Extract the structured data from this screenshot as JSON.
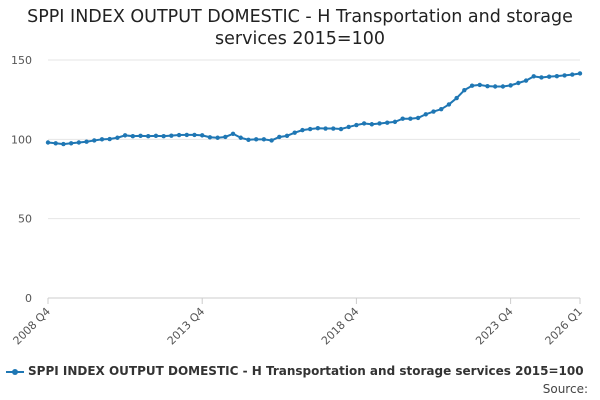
{
  "chart_data": {
    "type": "line",
    "title": "SPPI INDEX OUTPUT DOMESTIC - H Transportation and storage services 2015=100",
    "xlabel": "",
    "ylabel": "",
    "ylim": [
      0,
      150
    ],
    "yticks": [
      "0",
      "50",
      "100",
      "150"
    ],
    "xticks": [
      "2008 Q4",
      "2013 Q4",
      "2018 Q4",
      "2023 Q4",
      "2026 Q1"
    ],
    "grid": true,
    "legend_position": "bottom",
    "source_label": "Source:",
    "color": "#1f77b4",
    "series": [
      {
        "name": "SPPI INDEX OUTPUT DOMESTIC - H Transportation and storage services 2015=100",
        "x": [
          "2008 Q4",
          "2009 Q1",
          "2009 Q2",
          "2009 Q3",
          "2009 Q4",
          "2010 Q1",
          "2010 Q2",
          "2010 Q3",
          "2010 Q4",
          "2011 Q1",
          "2011 Q2",
          "2011 Q3",
          "2011 Q4",
          "2012 Q1",
          "2012 Q2",
          "2012 Q3",
          "2012 Q4",
          "2013 Q1",
          "2013 Q2",
          "2013 Q3",
          "2013 Q4",
          "2014 Q1",
          "2014 Q2",
          "2014 Q3",
          "2014 Q4",
          "2015 Q1",
          "2015 Q2",
          "2015 Q3",
          "2015 Q4",
          "2016 Q1",
          "2016 Q2",
          "2016 Q3",
          "2016 Q4",
          "2017 Q1",
          "2017 Q2",
          "2017 Q3",
          "2017 Q4",
          "2018 Q1",
          "2018 Q2",
          "2018 Q3",
          "2018 Q4",
          "2019 Q1",
          "2019 Q2",
          "2019 Q3",
          "2019 Q4",
          "2020 Q1",
          "2020 Q2",
          "2020 Q3",
          "2020 Q4",
          "2021 Q1",
          "2021 Q2",
          "2021 Q3",
          "2021 Q4",
          "2022 Q1",
          "2022 Q2",
          "2022 Q3",
          "2022 Q4",
          "2023 Q1",
          "2023 Q2",
          "2023 Q3",
          "2023 Q4",
          "2024 Q1",
          "2024 Q2",
          "2024 Q3",
          "2024 Q4",
          "2025 Q1",
          "2025 Q2",
          "2025 Q3",
          "2025 Q4",
          "2026 Q1"
        ],
        "values": [
          98.0,
          97.5,
          97.0,
          97.5,
          98.0,
          98.5,
          99.3,
          100.0,
          100.2,
          101.0,
          102.5,
          102.0,
          102.2,
          102.0,
          102.2,
          102.0,
          102.3,
          102.7,
          102.8,
          102.8,
          102.5,
          101.3,
          101.0,
          101.5,
          103.5,
          101.0,
          99.7,
          100.0,
          100.0,
          99.3,
          101.5,
          102.2,
          104.2,
          105.8,
          106.5,
          107.0,
          106.8,
          106.8,
          106.5,
          107.8,
          109.0,
          110.0,
          109.5,
          110.0,
          110.5,
          111.0,
          113.0,
          113.0,
          113.5,
          115.8,
          117.5,
          119.0,
          122.0,
          126.0,
          131.0,
          133.8,
          134.3,
          133.5,
          133.3,
          133.3,
          134.0,
          135.5,
          137.0,
          139.7,
          139.0,
          139.5,
          139.8,
          140.3,
          140.8,
          141.5
        ]
      }
    ]
  }
}
